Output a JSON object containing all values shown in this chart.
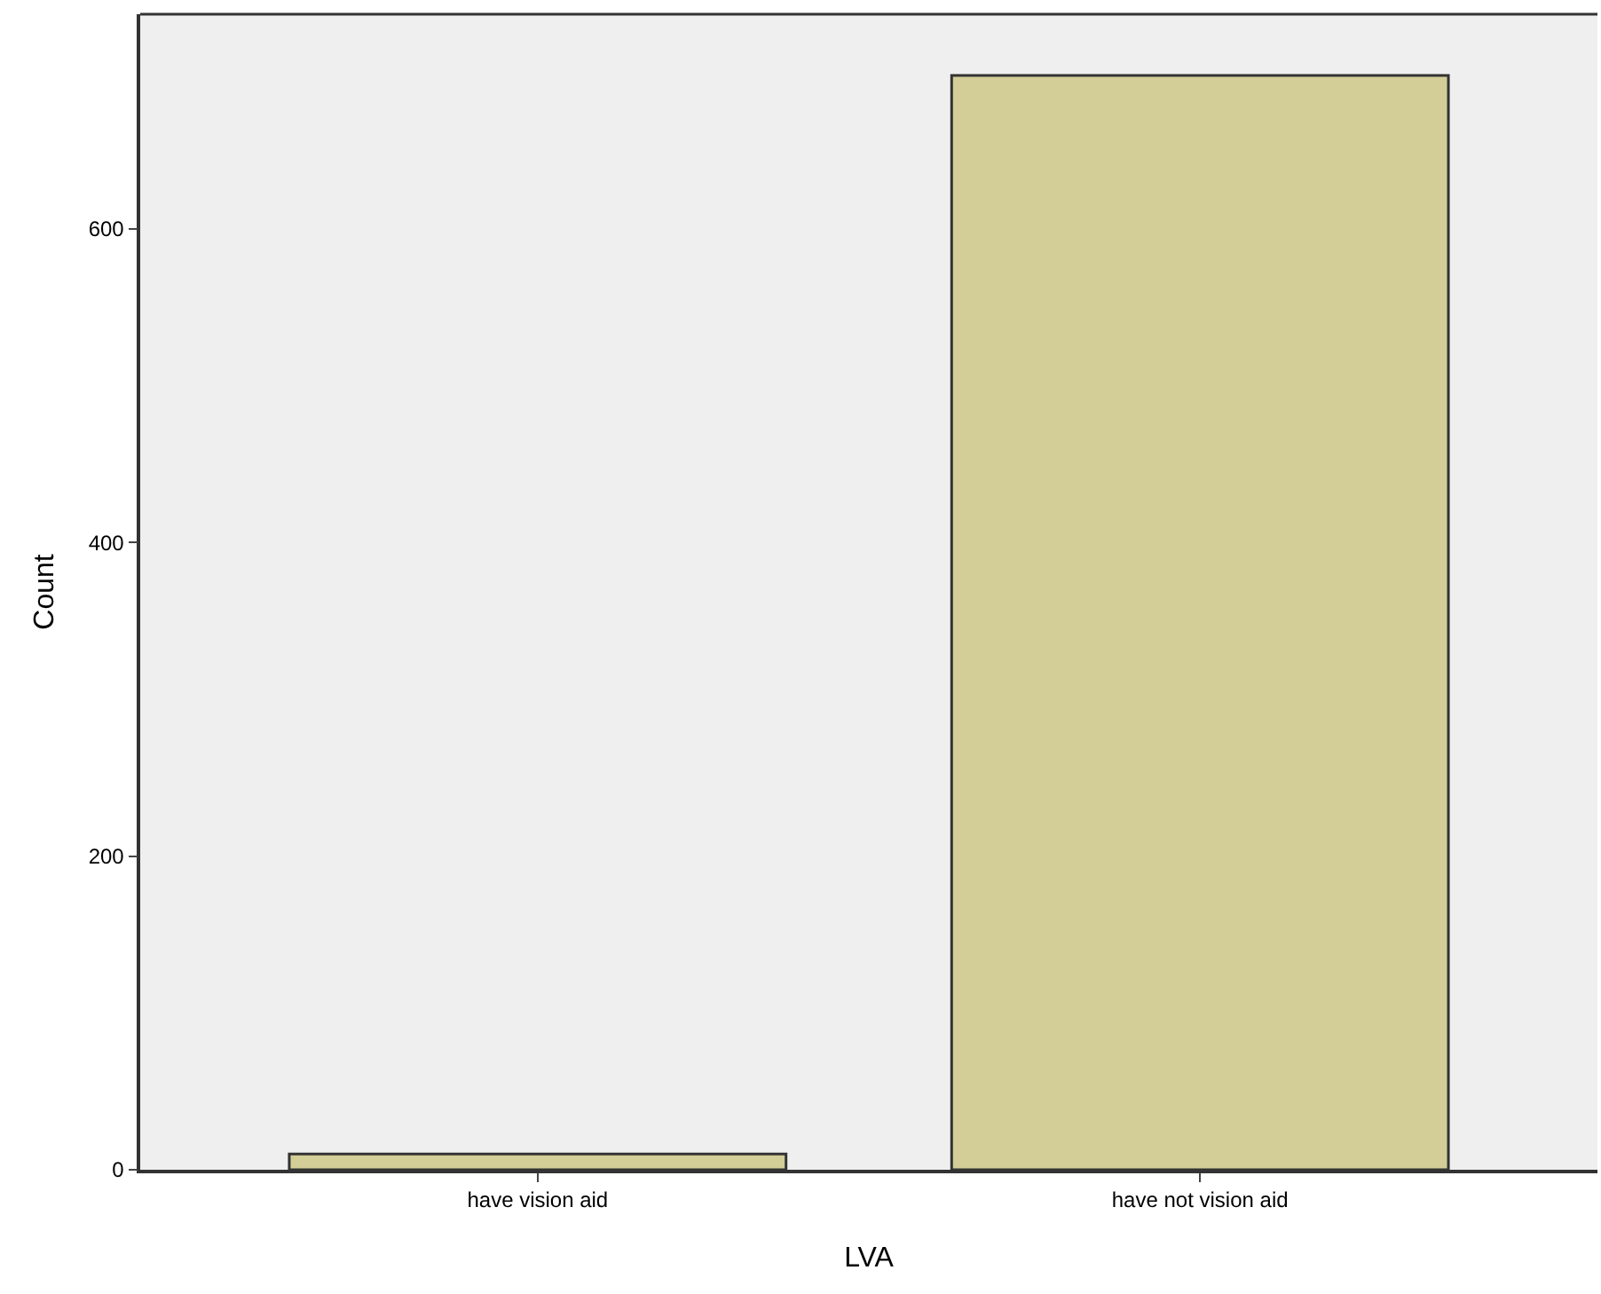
{
  "chart_data": {
    "type": "bar",
    "xlabel": "LVA",
    "ylabel": "Count",
    "categories": [
      "have vision aid",
      "have not vision aid"
    ],
    "values": [
      10,
      698
    ],
    "color": "#d3ce97",
    "ylim": [
      0,
      737
    ],
    "yticks": [
      0,
      200,
      400,
      600
    ],
    "grid": false,
    "legend": false
  }
}
